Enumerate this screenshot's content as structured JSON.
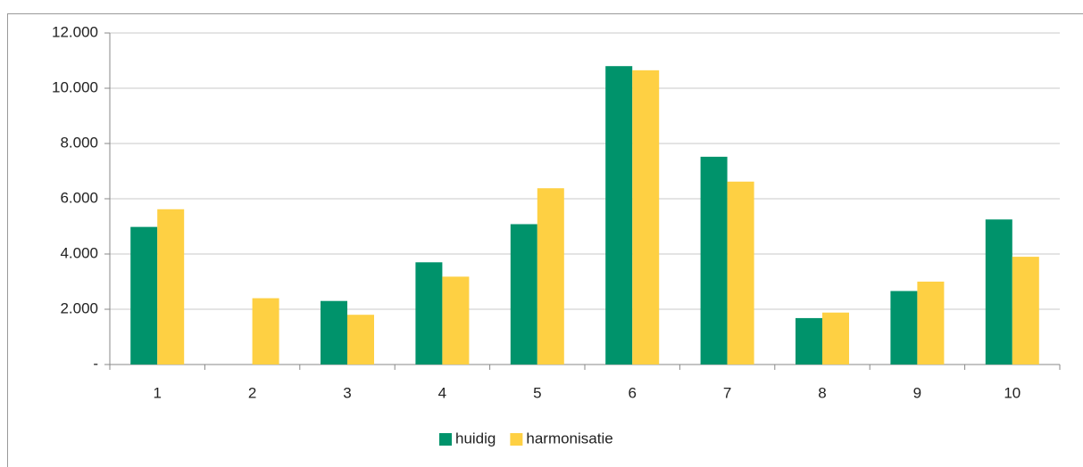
{
  "chart_data": {
    "type": "bar",
    "categories": [
      "1",
      "2",
      "3",
      "4",
      "5",
      "6",
      "7",
      "8",
      "9",
      "10"
    ],
    "series": [
      {
        "name": "huidig",
        "color": "#00936b",
        "values": [
          4980,
          0,
          2300,
          3700,
          5080,
          10800,
          7520,
          1680,
          2660,
          5250
        ]
      },
      {
        "name": "harmonisatie",
        "color": "#fed043",
        "values": [
          5620,
          2400,
          1800,
          3180,
          6380,
          10650,
          6620,
          1880,
          3000,
          3900
        ]
      }
    ],
    "ylim": [
      0,
      12000
    ],
    "yticks": [
      {
        "value": 0,
        "label": "-"
      },
      {
        "value": 2000,
        "label": "2.000"
      },
      {
        "value": 4000,
        "label": "4.000"
      },
      {
        "value": 6000,
        "label": "6.000"
      },
      {
        "value": 8000,
        "label": "8.000"
      },
      {
        "value": 10000,
        "label": "10.000"
      },
      {
        "value": 12000,
        "label": "12.000"
      }
    ],
    "grid": true,
    "legend": "bottom"
  }
}
